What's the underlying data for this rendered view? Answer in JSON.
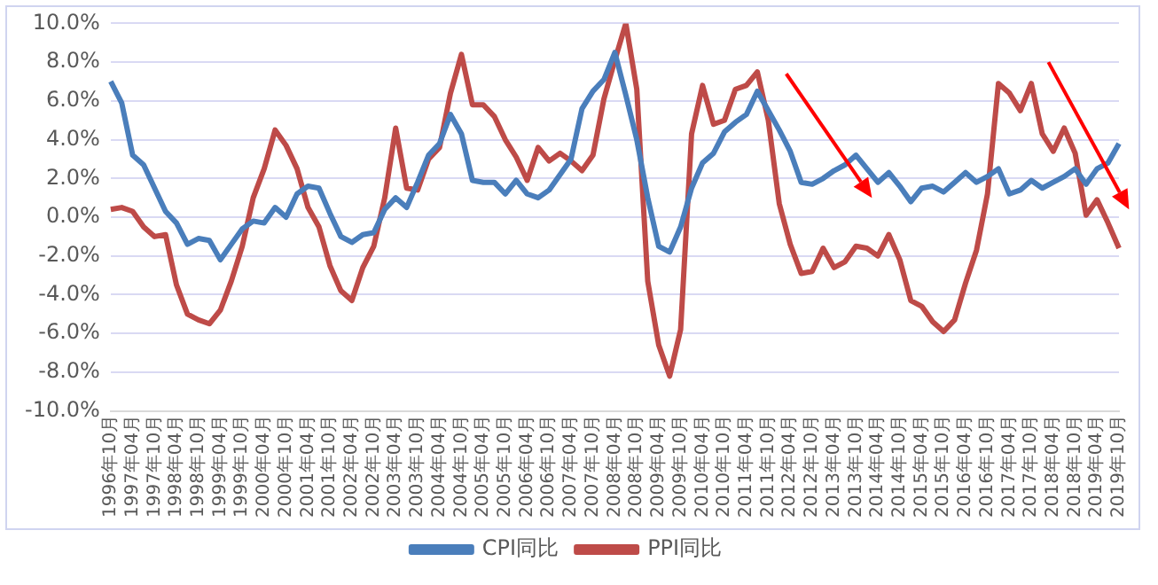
{
  "chart_data": {
    "type": "line",
    "categories": [
      "1996年10月",
      null,
      "1997年04月",
      null,
      "1997年10月",
      null,
      "1998年04月",
      null,
      "1998年10月",
      null,
      "1999年04月",
      null,
      "1999年10月",
      null,
      "2000年04月",
      null,
      "2000年10月",
      null,
      "2001年04月",
      null,
      "2001年10月",
      null,
      "2002年04月",
      null,
      "2002年10月",
      null,
      "2003年04月",
      null,
      "2003年10月",
      null,
      "2004年04月",
      null,
      "2004年10月",
      null,
      "2005年04月",
      null,
      "2005年10月",
      null,
      "2006年04月",
      null,
      "2006年10月",
      null,
      "2007年04月",
      null,
      "2007年10月",
      null,
      "2008年04月",
      null,
      "2008年10月",
      null,
      "2009年04月",
      null,
      "2009年10月",
      null,
      "2010年04月",
      null,
      "2010年10月",
      null,
      "2011年04月",
      null,
      "2011年10月",
      null,
      "2012年04月",
      null,
      "2012年10月",
      null,
      "2013年04月",
      null,
      "2013年10月",
      null,
      "2014年04月",
      null,
      "2014年10月",
      null,
      "2015年04月",
      null,
      "2015年10月",
      null,
      "2016年04月",
      null,
      "2016年10月",
      null,
      "2017年04月",
      null,
      "2017年10月",
      null,
      "2018年04月",
      null,
      "2018年10月",
      null,
      "2019年04月",
      null,
      "2019年10月"
    ],
    "series": [
      {
        "name": "CPI同比",
        "color": "#4a7ebb",
        "values": [
          7.0,
          5.9,
          3.2,
          2.7,
          1.5,
          0.3,
          -0.3,
          -1.4,
          -1.1,
          -1.2,
          -2.2,
          -1.4,
          -0.6,
          -0.2,
          -0.3,
          0.5,
          0.0,
          1.2,
          1.6,
          1.5,
          0.2,
          -1.0,
          -1.3,
          -0.9,
          -0.8,
          0.4,
          1.0,
          0.5,
          1.8,
          3.2,
          3.8,
          5.3,
          4.3,
          1.9,
          1.8,
          1.8,
          1.2,
          1.9,
          1.2,
          1.0,
          1.4,
          2.2,
          3.0,
          5.6,
          6.5,
          7.1,
          8.5,
          6.3,
          4.0,
          1.0,
          -1.5,
          -1.8,
          -0.5,
          1.5,
          2.8,
          3.3,
          4.4,
          4.9,
          5.3,
          6.5,
          5.5,
          4.5,
          3.4,
          1.8,
          1.7,
          2.0,
          2.4,
          2.7,
          3.2,
          2.5,
          1.8,
          2.3,
          1.6,
          0.8,
          1.5,
          1.6,
          1.3,
          1.8,
          2.3,
          1.8,
          2.1,
          2.5,
          1.2,
          1.4,
          1.9,
          1.5,
          1.8,
          2.1,
          2.5,
          1.7,
          2.5,
          2.8,
          3.8
        ]
      },
      {
        "name": "PPI同比",
        "color": "#be4b48",
        "values": [
          0.4,
          0.5,
          0.3,
          -0.5,
          -1.0,
          -0.9,
          -3.5,
          -5.0,
          -5.3,
          -5.5,
          -4.8,
          -3.3,
          -1.5,
          1.0,
          2.5,
          4.5,
          3.7,
          2.5,
          0.5,
          -0.5,
          -2.5,
          -3.8,
          -4.3,
          -2.6,
          -1.5,
          1.0,
          4.6,
          1.5,
          1.4,
          3.0,
          3.6,
          6.4,
          8.4,
          5.8,
          5.8,
          5.2,
          4.0,
          3.1,
          1.9,
          3.6,
          2.9,
          3.3,
          2.9,
          2.4,
          3.2,
          6.1,
          8.1,
          10.0,
          6.6,
          -3.3,
          -6.6,
          -8.2,
          -5.8,
          4.3,
          6.8,
          4.8,
          5.0,
          6.6,
          6.8,
          7.5,
          5.0,
          0.7,
          -1.4,
          -2.9,
          -2.8,
          -1.6,
          -2.6,
          -2.3,
          -1.5,
          -1.6,
          -2.0,
          -0.9,
          -2.2,
          -4.3,
          -4.6,
          -5.4,
          -5.9,
          -5.3,
          -3.4,
          -1.7,
          1.2,
          6.9,
          6.4,
          5.5,
          6.9,
          4.3,
          3.4,
          4.6,
          3.3,
          0.1,
          0.9,
          -0.3,
          -1.6
        ]
      }
    ],
    "ylim": [
      -10,
      10
    ],
    "yticks": [
      {
        "value": -10,
        "label": "-10.0%"
      },
      {
        "value": -8,
        "label": "-8.0%"
      },
      {
        "value": -6,
        "label": "-6.0%"
      },
      {
        "value": -4,
        "label": "-4.0%"
      },
      {
        "value": -2,
        "label": "-2.0%"
      },
      {
        "value": 0,
        "label": "0.0%"
      },
      {
        "value": 2,
        "label": "2.0%"
      },
      {
        "value": 4,
        "label": "4.0%"
      },
      {
        "value": 6,
        "label": "6.0%"
      },
      {
        "value": 8,
        "label": "8.0%"
      },
      {
        "value": 10,
        "label": "10.0%"
      }
    ],
    "grid": "y",
    "legend": "bottom",
    "marker": "none",
    "line_style": "solid"
  }
}
